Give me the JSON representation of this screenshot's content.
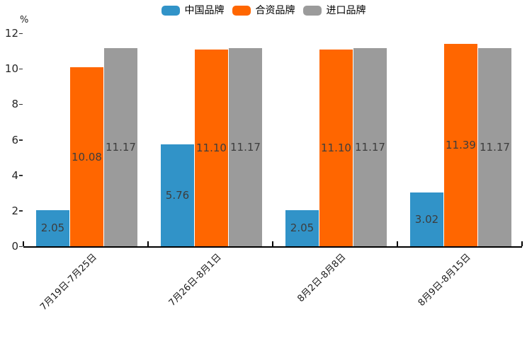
{
  "chart_data": {
    "type": "bar",
    "title": "",
    "unit_label": "%",
    "categories": [
      "7月19日-7月25日",
      "7月26日-8月1日",
      "8月2日-8月8日",
      "8月9日-8月15日"
    ],
    "series": [
      {
        "name": "中国品牌",
        "color": "#3193c8",
        "values": [
          2.05,
          5.76,
          2.05,
          3.02
        ]
      },
      {
        "name": "合资品牌",
        "color": "#ff6600",
        "values": [
          10.08,
          11.1,
          11.1,
          11.39
        ]
      },
      {
        "name": "进口品牌",
        "color": "#9b9b9b",
        "values": [
          11.17,
          11.17,
          11.17,
          11.17
        ]
      }
    ],
    "value_label_decimals": 2,
    "ylim": [
      0,
      12
    ],
    "yticks": [
      0,
      2,
      4,
      6,
      8,
      10,
      12
    ],
    "grid": false,
    "legend_position": "top-center",
    "axis_color": "#000000",
    "value_label_color": "#3d3d3d"
  }
}
